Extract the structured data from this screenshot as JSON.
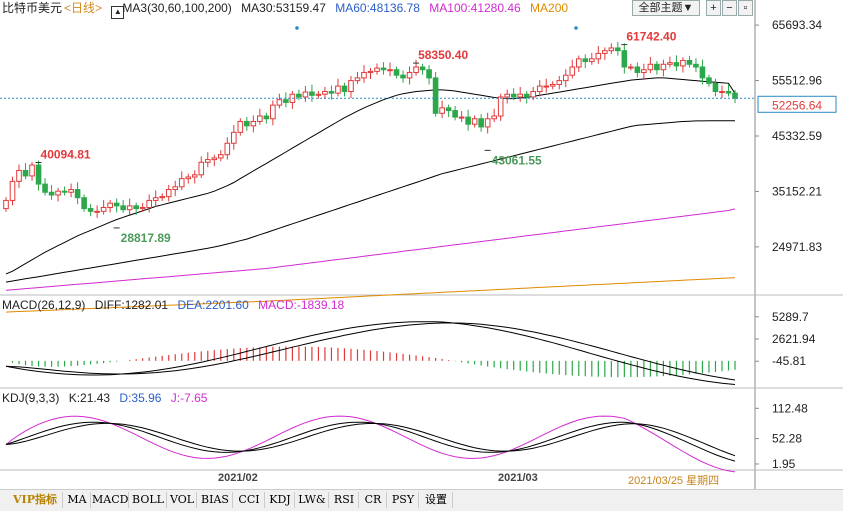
{
  "header": {
    "symbol": "比特币美元",
    "period": "<日线>",
    "ma_group_label": "MA3(30,60,100,200)",
    "ma30": "MA30:53159.47",
    "ma60": "MA60:48136.78",
    "ma100": "MA100:41280.46",
    "ma200": "MA200",
    "theme_button": "全部主题▼"
  },
  "macd_header": {
    "name": "MACD(26,12,9)",
    "diff": "DIFF:1282.01",
    "dea": "DEA:2201.60",
    "macd": "MACD:-1839.18"
  },
  "kdj_header": {
    "name": "KDJ(9,3,3)",
    "k": "K:21.43",
    "d": "D:35.96",
    "j": "J:-7.65"
  },
  "footer": {
    "month1": "2021/02",
    "month2": "2021/03",
    "date": "2021/03/25 星期四"
  },
  "tabs": [
    "VIP指标",
    "MA",
    "MACD",
    "BOLL",
    "VOL",
    "BIAS",
    "CCI",
    "KDJ",
    "LW&",
    "RSI",
    "CR",
    "PSY",
    "设置"
  ],
  "colors": {
    "up": "#e23a3a",
    "down": "#2aa84a",
    "ma30": "#000000",
    "ma60": "#000000",
    "ma100": "#d22ad2",
    "ma200": "#e08a00",
    "last_price": "#e23a3a"
  },
  "chart_data": [
    {
      "type": "candlestick",
      "title": "比特币美元 <日线>",
      "y_ticks": [
        65693.34,
        55512.96,
        45332.59,
        35152.21,
        24971.83
      ],
      "ylim": [
        16500,
        67000
      ],
      "last_price": 52256.64,
      "annotations": [
        {
          "label": "40094.81",
          "value": 40094.81,
          "kind": "high",
          "index": 5
        },
        {
          "label": "28817.89",
          "value": 28817.89,
          "kind": "low",
          "index": 17
        },
        {
          "label": "58350.40",
          "value": 58350.4,
          "kind": "high",
          "index": 63
        },
        {
          "label": "43061.55",
          "value": 43061.55,
          "kind": "low",
          "index": 74
        },
        {
          "label": "61742.40",
          "value": 61742.4,
          "kind": "high",
          "index": 95
        }
      ],
      "close": [
        33500,
        37000,
        39000,
        38000,
        40000,
        36500,
        35000,
        34500,
        35200,
        35000,
        35500,
        34000,
        32000,
        31500,
        31500,
        32200,
        33000,
        32500,
        31800,
        32500,
        32000,
        32200,
        33500,
        34000,
        34200,
        35500,
        36000,
        37500,
        37800,
        38200,
        40500,
        41000,
        41300,
        41900,
        44000,
        46000,
        48000,
        47200,
        48000,
        49000,
        48500,
        51000,
        52000,
        51500,
        53000,
        52500,
        53400,
        52800,
        53000,
        53500,
        53200,
        54500,
        53500,
        55500,
        56000,
        57000,
        57200,
        57800,
        57500,
        57500,
        56500,
        56000,
        57000,
        58000,
        57500,
        56000,
        49500,
        50500,
        50000,
        48800,
        48800,
        47500,
        48500,
        47000,
        48500,
        49000,
        52500,
        53000,
        52500,
        53000,
        52500,
        53500,
        54500,
        54500,
        54800,
        55500,
        56500,
        58000,
        59500,
        59000,
        59500,
        60500,
        61000,
        61500,
        61000,
        58000,
        58000,
        57000,
        57500,
        58500,
        57500,
        58500,
        58800,
        58200,
        59200,
        58500,
        58000,
        56000,
        55000,
        53500,
        53500,
        53200,
        52256.64
      ],
      "ma30": [
        20000,
        20500,
        21200,
        21900,
        22600,
        23300,
        24000,
        24600,
        25200,
        25800,
        26400,
        27000,
        27500,
        28000,
        28500,
        29000,
        29500,
        30000,
        30400,
        30800,
        31200,
        31600,
        32000,
        32400,
        32700,
        33000,
        33300,
        33600,
        33900,
        34200,
        34500,
        34800,
        35200,
        35700,
        36200,
        36800,
        37500,
        38200,
        38900,
        39600,
        40300,
        41000,
        41700,
        42400,
        43100,
        43800,
        44500,
        45200,
        45900,
        46600,
        47300,
        48000,
        48700,
        49300,
        49900,
        50500,
        51000,
        51500,
        52000,
        52400,
        52800,
        53100,
        53300,
        53500,
        53600,
        53700,
        53800,
        53800,
        53700,
        53600,
        53400,
        53200,
        53000,
        52800,
        52600,
        52400,
        52300,
        52200,
        52200,
        52300,
        52400,
        52600,
        52800,
        53000,
        53200,
        53400,
        53600,
        53800,
        54000,
        54200,
        54400,
        54600,
        54800,
        55000,
        55200,
        55400,
        55600,
        55700,
        55800,
        55900,
        56000,
        56000,
        55900,
        55800,
        55700,
        55600,
        55500,
        55400,
        55300,
        55200,
        55100,
        55000,
        53159.47
      ],
      "ma60": [
        18500,
        18700,
        18900,
        19100,
        19300,
        19500,
        19700,
        19900,
        20100,
        20300,
        20500,
        20700,
        20900,
        21100,
        21300,
        21500,
        21700,
        21900,
        22100,
        22300,
        22500,
        22700,
        22900,
        23100,
        23300,
        23500,
        23700,
        23900,
        24100,
        24300,
        24500,
        24700,
        24950,
        25200,
        25500,
        25800,
        26100,
        26400,
        26800,
        27200,
        27600,
        28000,
        28400,
        28800,
        29200,
        29600,
        30000,
        30400,
        30800,
        31200,
        31600,
        32000,
        32400,
        32800,
        33200,
        33600,
        34000,
        34400,
        34800,
        35200,
        35600,
        36000,
        36400,
        36800,
        37200,
        37600,
        38000,
        38400,
        38700,
        39000,
        39300,
        39600,
        39900,
        40200,
        40500,
        40800,
        41100,
        41400,
        41700,
        42000,
        42300,
        42600,
        42900,
        43200,
        43500,
        43800,
        44100,
        44400,
        44700,
        45000,
        45300,
        45600,
        45900,
        46200,
        46500,
        46800,
        47100,
        47300,
        47400,
        47500,
        47600,
        47700,
        47800,
        47900,
        48000,
        48050,
        48100,
        48110,
        48120,
        48125,
        48130,
        48135,
        48136.78
      ],
      "ma100": [
        17000,
        17100,
        17200,
        17300,
        17400,
        17500,
        17600,
        17700,
        17800,
        17900,
        18000,
        18100,
        18200,
        18300,
        18400,
        18500,
        18600,
        18700,
        18800,
        18900,
        19000,
        19100,
        19200,
        19300,
        19400,
        19500,
        19600,
        19700,
        19800,
        19900,
        20000,
        20100,
        20200,
        20300,
        20400,
        20500,
        20600,
        20700,
        20800,
        20900,
        21000,
        21150,
        21300,
        21450,
        21600,
        21750,
        21900,
        22050,
        22200,
        22350,
        22500,
        22650,
        22800,
        22950,
        23100,
        23250,
        23400,
        23550,
        23700,
        23850,
        24000,
        24150,
        24300,
        24450,
        24600,
        24750,
        24900,
        25050,
        25200,
        25350,
        25500,
        25650,
        25800,
        25950,
        26100,
        26250,
        26400,
        26550,
        26700,
        26850,
        27000,
        27150,
        27300,
        27450,
        27600,
        27750,
        27900,
        28050,
        28200,
        28350,
        28500,
        28650,
        28800,
        28950,
        29100,
        29250,
        29400,
        29550,
        29700,
        29850,
        30000,
        30150,
        30300,
        30450,
        30600,
        30750,
        30900,
        31050,
        31200,
        31350,
        31500,
        31650,
        41280.46
      ],
      "ma200": [
        13000,
        13050,
        13100,
        13150,
        13200,
        13250,
        13300,
        13350,
        13400,
        13450,
        13500,
        13550,
        13600,
        13650,
        13700,
        13750,
        13800,
        13850,
        13900,
        13950,
        14000,
        14050,
        14100,
        14150,
        14200,
        14250,
        14300,
        14350,
        14400,
        14450,
        14500,
        14550,
        14600,
        14650,
        14700,
        14750,
        14800,
        14850,
        14900,
        14950,
        15000,
        15060,
        15120,
        15180,
        15240,
        15300,
        15360,
        15420,
        15480,
        15540,
        15600,
        15660,
        15720,
        15780,
        15840,
        15900,
        15960,
        16020,
        16080,
        16140,
        16200,
        16260,
        16320,
        16380,
        16440,
        16500,
        16560,
        16620,
        16680,
        16740,
        16800,
        16860,
        16920,
        16980,
        17040,
        17100,
        17160,
        17220,
        17280,
        17340,
        17400,
        17460,
        17520,
        17580,
        17640,
        17700,
        17760,
        17820,
        17880,
        17940,
        18000,
        18060,
        18120,
        18180,
        18240,
        18300,
        18360,
        18420,
        18480,
        18540,
        18600,
        18660,
        18720,
        18780,
        18840,
        18900,
        18960,
        19020,
        19080,
        19140,
        19200,
        19260,
        19320
      ]
    },
    {
      "type": "macd",
      "y_ticks": [
        5289.7,
        2621.94,
        -45.81
      ],
      "ylim": [
        -2900,
        6100
      ],
      "diff_last": 1282.01,
      "dea_last": 2201.6,
      "macd_last": -1839.18
    },
    {
      "type": "kdj",
      "y_ticks": [
        112.48,
        52.28,
        1.95
      ],
      "ylim": [
        -10,
        125
      ],
      "k_last": 21.43,
      "d_last": 35.96,
      "j_last": -7.65
    }
  ]
}
